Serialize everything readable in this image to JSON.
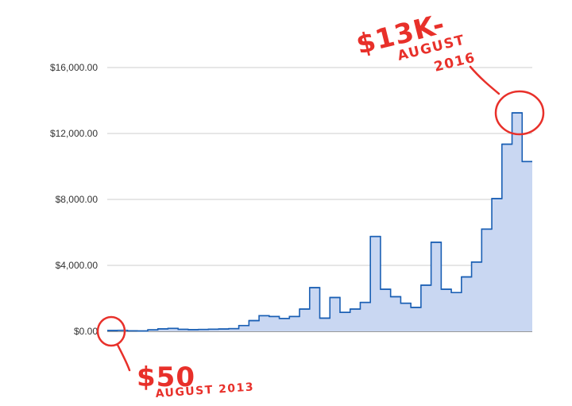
{
  "chart_data": {
    "type": "area",
    "step": true,
    "y_tick_labels": [
      "$0.00",
      "$4,000.00",
      "$8,000.00",
      "$12,000.00",
      "$16,000.00"
    ],
    "y_ticks": [
      0,
      4000,
      8000,
      12000,
      16000
    ],
    "ylim": [
      0,
      18000
    ],
    "grid": true,
    "legend": "none",
    "series": [
      {
        "color": "#1a5fb4",
        "fill": "#c9d7f2",
        "values": [
          50,
          60,
          30,
          20,
          90,
          150,
          180,
          120,
          100,
          110,
          130,
          140,
          160,
          350,
          650,
          950,
          900,
          780,
          900,
          1350,
          2650,
          800,
          2050,
          1150,
          1350,
          1750,
          5750,
          2550,
          2100,
          1700,
          1450,
          2800,
          5400,
          2550,
          2350,
          3300,
          4200,
          6200,
          8050,
          11350,
          13250,
          10300
        ]
      }
    ],
    "annotations": [
      {
        "text": "$50",
        "target_index": 0
      },
      {
        "text": "AUGUST 2013",
        "target_index": 0
      },
      {
        "text": "$13K-",
        "target_index": 40
      },
      {
        "text": "AUGUST",
        "target_index": 40
      },
      {
        "text": "2016",
        "target_index": 40
      }
    ],
    "annotation_color": "#e8302a"
  }
}
